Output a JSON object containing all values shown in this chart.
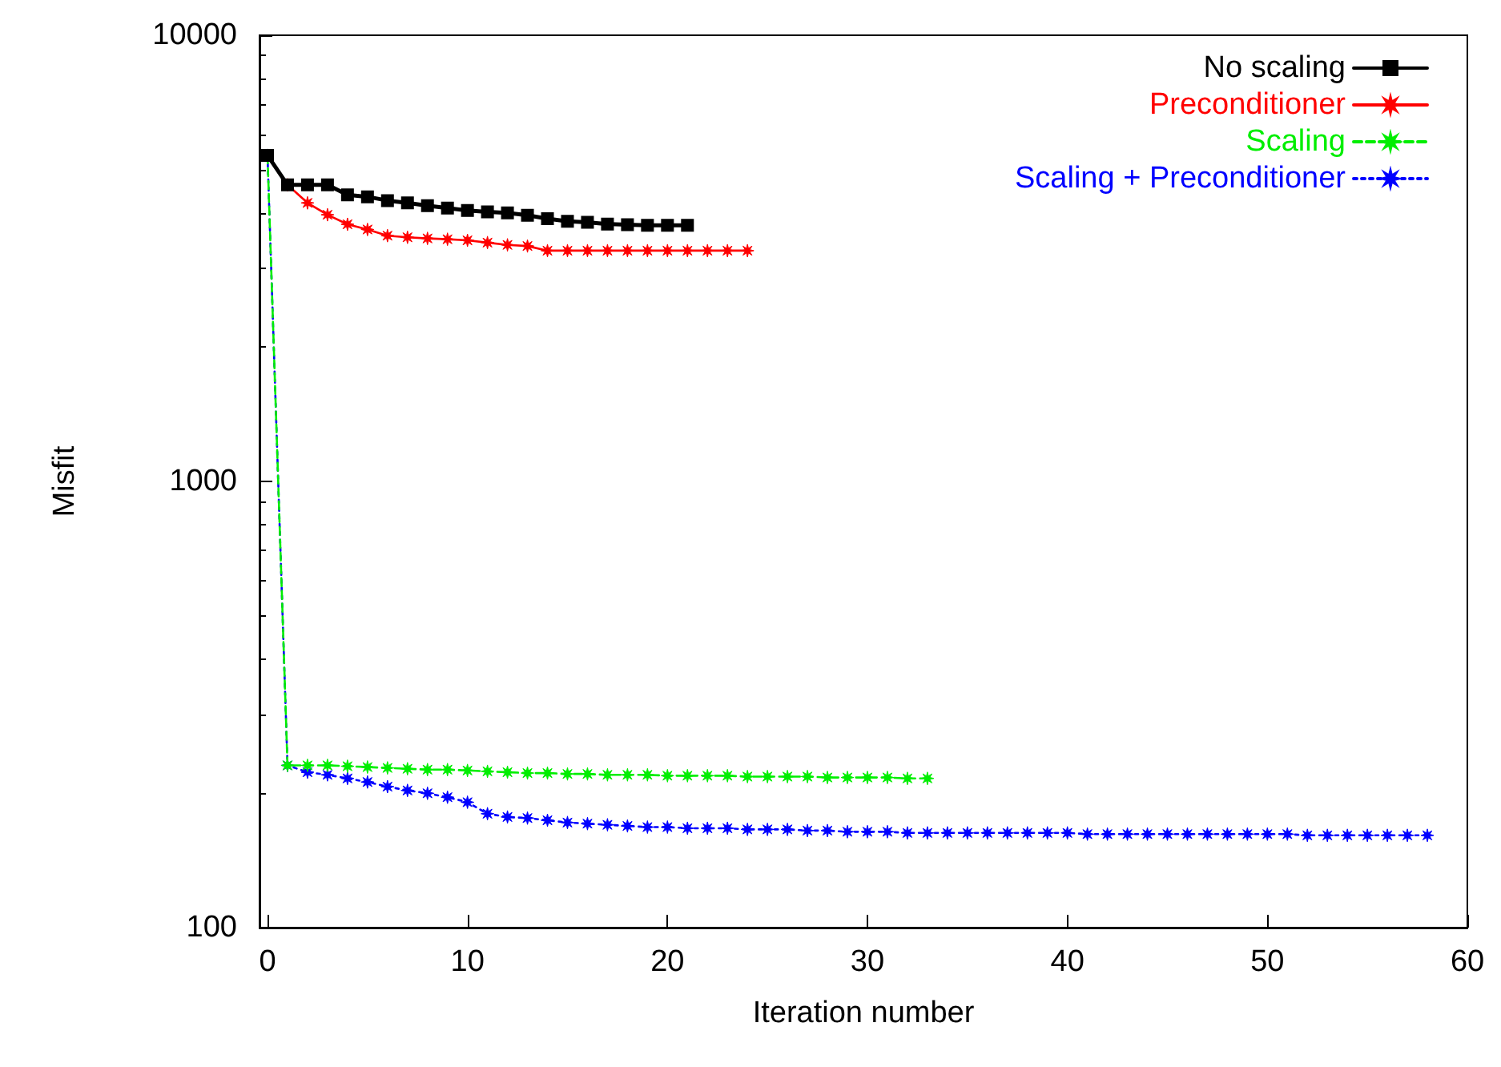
{
  "chart_data": {
    "type": "line",
    "xlabel": "Iteration number",
    "ylabel": "Misfit",
    "log": "y",
    "xlim": [
      -0.4,
      60
    ],
    "xticks": [
      0,
      10,
      20,
      30,
      40,
      50,
      60
    ],
    "ylim": [
      100,
      10000
    ],
    "yticks": [
      100,
      1000,
      10000
    ],
    "grid": false,
    "legend": "top right",
    "series": [
      {
        "name": "No scaling",
        "color": "#000000",
        "marker": "square",
        "line_style": "solid",
        "x": [
          0,
          1,
          2,
          3,
          4,
          5,
          6,
          7,
          8,
          9,
          10,
          11,
          12,
          13,
          14,
          15,
          16,
          17,
          18,
          19,
          20,
          21
        ],
        "values": [
          5380,
          4620,
          4620,
          4620,
          4390,
          4345,
          4260,
          4210,
          4150,
          4100,
          4050,
          4020,
          4000,
          3950,
          3880,
          3830,
          3810,
          3775,
          3760,
          3750,
          3750,
          3750
        ]
      },
      {
        "name": "Preconditioner",
        "color": "#ff0000",
        "marker": "star",
        "line_style": "solid",
        "x": [
          0,
          1,
          2,
          3,
          4,
          5,
          6,
          7,
          8,
          9,
          10,
          11,
          12,
          13,
          14,
          15,
          16,
          17,
          18,
          19,
          20,
          21,
          22,
          23,
          24
        ],
        "values": [
          5380,
          4620,
          4210,
          3960,
          3770,
          3670,
          3555,
          3525,
          3505,
          3490,
          3470,
          3430,
          3390,
          3370,
          3290,
          3290,
          3290,
          3290,
          3290,
          3290,
          3290,
          3290,
          3290,
          3290,
          3290
        ]
      },
      {
        "name": "Scaling",
        "color": "#00ee00",
        "marker": "star",
        "line_style": "dashed",
        "x": [
          0,
          1,
          2,
          3,
          4,
          5,
          6,
          7,
          8,
          9,
          10,
          11,
          12,
          13,
          14,
          15,
          16,
          17,
          18,
          19,
          20,
          21,
          22,
          23,
          24,
          25,
          26,
          27,
          28,
          29,
          30,
          31,
          32,
          33
        ],
        "values": [
          5380,
          231,
          231,
          231,
          230,
          229,
          228,
          227,
          226,
          226,
          225,
          224,
          223,
          222,
          222,
          221,
          221,
          220,
          220,
          220,
          219,
          219,
          219,
          219,
          218,
          218,
          218,
          218,
          217,
          217,
          217,
          217,
          216,
          216
        ]
      },
      {
        "name": "Scaling + Preconditioner",
        "color": "#0000ff",
        "marker": "star",
        "line_style": "dotted",
        "x": [
          0,
          1,
          2,
          3,
          4,
          5,
          6,
          7,
          8,
          9,
          10,
          11,
          12,
          13,
          14,
          15,
          16,
          17,
          18,
          19,
          20,
          21,
          22,
          23,
          24,
          25,
          26,
          27,
          28,
          29,
          30,
          31,
          32,
          33,
          34,
          35,
          36,
          37,
          38,
          39,
          40,
          41,
          42,
          43,
          44,
          45,
          46,
          47,
          48,
          49,
          50,
          51,
          52,
          53,
          54,
          55,
          56,
          57,
          58
        ],
        "values": [
          5380,
          231,
          223,
          220,
          216,
          212,
          207,
          203,
          200,
          196,
          191,
          180,
          177,
          176,
          174,
          172,
          171,
          170,
          169,
          168,
          168,
          167,
          167,
          167,
          166,
          166,
          166,
          165,
          165,
          164,
          164,
          164,
          163,
          163,
          163,
          163,
          163,
          163,
          163,
          163,
          163,
          162,
          162,
          162,
          162,
          162,
          162,
          162,
          162,
          162,
          162,
          162,
          161,
          161,
          161,
          161,
          161,
          161,
          161
        ]
      }
    ]
  }
}
